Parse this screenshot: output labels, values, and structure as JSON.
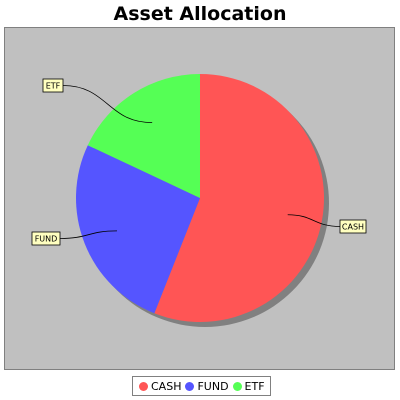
{
  "chart_data": {
    "type": "pie",
    "title": "Asset Allocation",
    "categories": [
      "CASH",
      "FUND",
      "ETF"
    ],
    "values": [
      56,
      26,
      18
    ],
    "colors": [
      "#ff5555",
      "#5555ff",
      "#55ff55"
    ],
    "background": "#c0c0c0",
    "legend_placement": "bottom",
    "labels_shown": true,
    "shadow": true
  },
  "legend": {
    "items": [
      {
        "label": "CASH",
        "color": "#ff5555"
      },
      {
        "label": "FUND",
        "color": "#5555ff"
      },
      {
        "label": "ETF",
        "color": "#55ff55"
      }
    ]
  }
}
